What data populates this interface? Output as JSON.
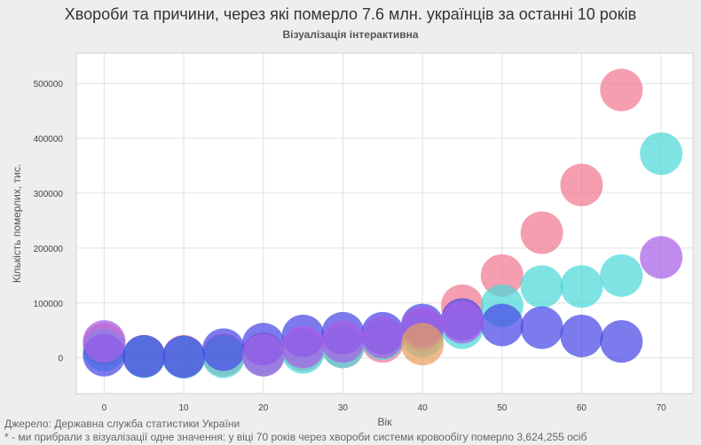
{
  "header": {
    "title": "Хвороби та причини, через які померло 7.6 млн. українців за останні 10 років",
    "subtitle": "Візуалізація інтерактивна"
  },
  "footer": {
    "source": "Джерело: Державна служба статистики України",
    "note": "* - ми прибрали з візуалізації одне значення: у віці 70 років через хвороби системи кровообігу померло 3,624,255 осіб"
  },
  "colors": {
    "pink": "#f07890",
    "cyan": "#4dd8d8",
    "blue": "#4848e6",
    "purple": "#a860e8",
    "orange": "#e8a060",
    "plot_bg": "#ffffff",
    "grid": "#e0e0e0"
  },
  "chart_data": {
    "type": "scatter",
    "xlabel": "Вік",
    "ylabel": "Кількість померлих, тис.",
    "xlim": [
      -3.5,
      74
    ],
    "ylim": [
      -65000,
      555000
    ],
    "x_ticks": [
      0,
      10,
      20,
      30,
      40,
      50,
      60,
      70
    ],
    "y_ticks": [
      0,
      100000,
      200000,
      300000,
      400000,
      500000
    ],
    "grid": true,
    "series": [
      {
        "color": "pink",
        "points": [
          [
            0,
            25000
          ],
          [
            5,
            3000
          ],
          [
            10,
            3000
          ],
          [
            15,
            5000
          ],
          [
            20,
            8000
          ],
          [
            25,
            15000
          ],
          [
            30,
            20000
          ],
          [
            35,
            30000
          ],
          [
            40,
            50000
          ],
          [
            45,
            95000
          ],
          [
            50,
            150000
          ],
          [
            55,
            228000
          ],
          [
            60,
            315000
          ],
          [
            65,
            488000
          ]
        ]
      },
      {
        "color": "cyan",
        "points": [
          [
            0,
            15000
          ],
          [
            5,
            2000
          ],
          [
            10,
            1000
          ],
          [
            15,
            2000
          ],
          [
            20,
            5000
          ],
          [
            25,
            10000
          ],
          [
            30,
            20000
          ],
          [
            35,
            35000
          ],
          [
            40,
            40000
          ],
          [
            45,
            55000
          ],
          [
            50,
            95000
          ],
          [
            55,
            130000
          ],
          [
            60,
            130000
          ],
          [
            65,
            150000
          ],
          [
            70,
            372000
          ]
        ]
      },
      {
        "color": "blue",
        "points": [
          [
            0,
            5000
          ],
          [
            5,
            3000
          ],
          [
            10,
            2000
          ],
          [
            15,
            15000
          ],
          [
            20,
            25000
          ],
          [
            25,
            40000
          ],
          [
            30,
            45000
          ],
          [
            35,
            45000
          ],
          [
            40,
            60000
          ],
          [
            45,
            70000
          ],
          [
            50,
            60000
          ],
          [
            55,
            55000
          ],
          [
            60,
            40000
          ],
          [
            65,
            30000
          ]
        ]
      },
      {
        "color": "purple",
        "points": [
          [
            0,
            30000
          ],
          [
            20,
            5000
          ],
          [
            25,
            20000
          ],
          [
            30,
            30000
          ],
          [
            35,
            38000
          ],
          [
            40,
            55000
          ],
          [
            45,
            65000
          ],
          [
            70,
            183000
          ]
        ]
      },
      {
        "color": "orange",
        "points": [
          [
            40,
            25000
          ]
        ]
      }
    ]
  }
}
